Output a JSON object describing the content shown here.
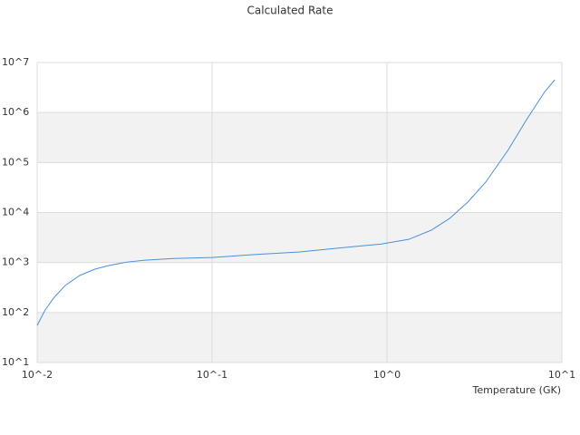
{
  "chart_data": {
    "type": "line",
    "title": "Calculated Rate",
    "x_label": "Temperature (GK)",
    "x_log": true,
    "y_log": true,
    "grid": true,
    "bands": true,
    "xlim": [
      0.01,
      10
    ],
    "xticks": [
      {
        "value": 0.01,
        "label": "10^-2"
      },
      {
        "value": 0.1,
        "label": "10^-1"
      },
      {
        "value": 1,
        "label": "10^0"
      },
      {
        "value": 10,
        "label": "10^1"
      }
    ],
    "ylim": [
      10,
      10000000
    ],
    "yticks": [
      {
        "value": 10,
        "label": "10^1"
      },
      {
        "value": 100,
        "label": "10^2"
      },
      {
        "value": 1000,
        "label": "10^3"
      },
      {
        "value": 10000,
        "label": "10^4"
      },
      {
        "value": 100000,
        "label": "10^5"
      },
      {
        "value": 1000000,
        "label": "10^6"
      },
      {
        "value": 10000000,
        "label": "10^7"
      }
    ],
    "series": [
      {
        "color": "#4a90d9",
        "x": [
          0.01,
          0.0111,
          0.0125,
          0.0145,
          0.0175,
          0.0215,
          0.0257,
          0.0326,
          0.0414,
          0.0598,
          0.1,
          0.175,
          0.318,
          0.578,
          0.93,
          1.33,
          1.79,
          2.28,
          2.89,
          3.67,
          4.95,
          6.28,
          7.98,
          9.1
        ],
        "values": [
          55,
          112,
          200,
          350,
          550,
          740,
          870,
          1020,
          1110,
          1200,
          1260,
          1440,
          1630,
          2000,
          2350,
          2900,
          4430,
          7600,
          16000,
          40500,
          182000,
          720000,
          2600000,
          4500000
        ]
      }
    ]
  }
}
